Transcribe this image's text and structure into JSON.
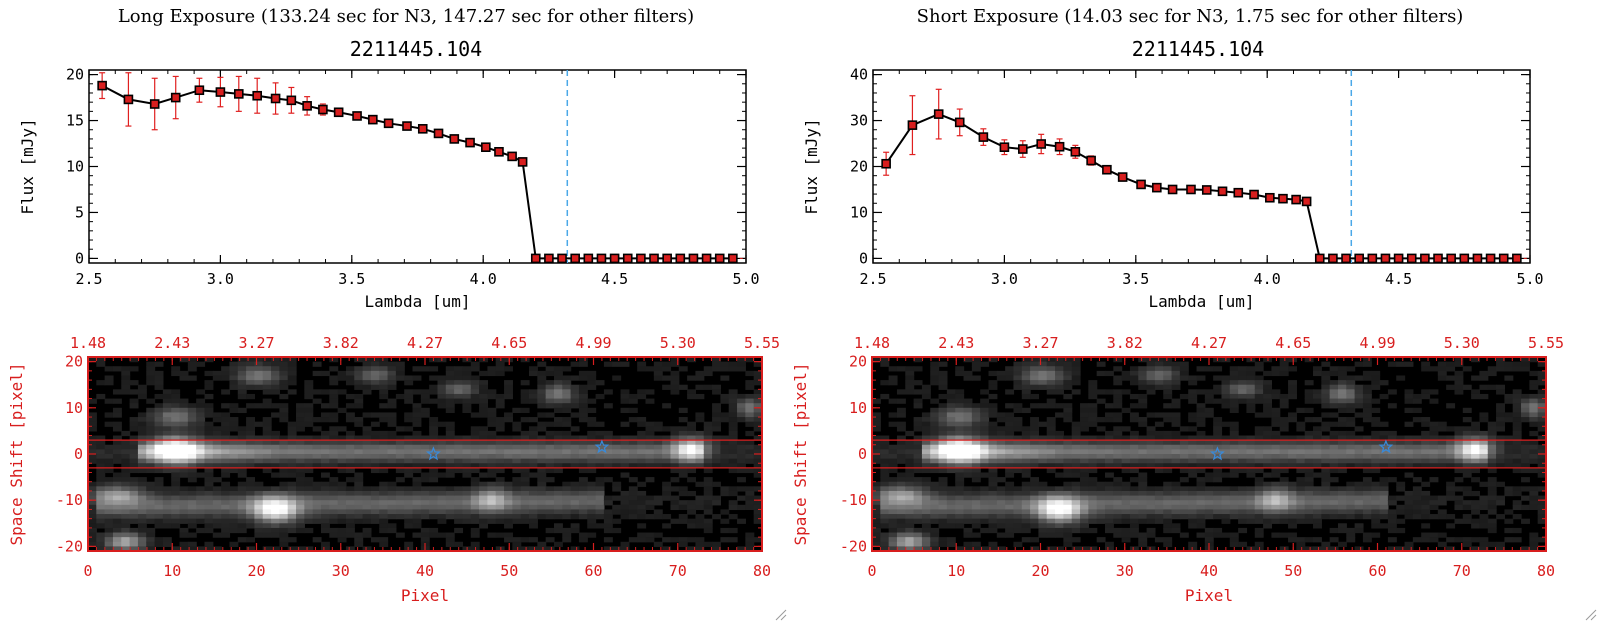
{
  "panels": [
    {
      "header": "Long Exposure (133.24 sec for N3, 147.27 sec for other filters)",
      "subtitle": "2211445.104"
    },
    {
      "header": "Short Exposure (14.03 sec for N3, 1.75 sec for other filters)",
      "subtitle": "2211445.104"
    }
  ],
  "colors": {
    "axis": "#000000",
    "point_fill": "#d81e1e",
    "error_bar": "#e02020",
    "vline": "#4aa8e8",
    "spec_frame": "#d81e1e",
    "star": "#3a8ad8"
  },
  "chart_data": [
    {
      "type": "line",
      "title": "2211445.104",
      "xlabel": "Lambda [um]",
      "ylabel": "Flux [mJy]",
      "xlim": [
        2.5,
        5.0
      ],
      "ylim": [
        -0.5,
        20.5
      ],
      "xticks": [
        2.5,
        3.0,
        3.5,
        4.0,
        4.5,
        5.0
      ],
      "xtick_labels": [
        "2.5",
        "3.0",
        "3.5",
        "4.0",
        "4.5",
        "5.0"
      ],
      "yticks": [
        0,
        5,
        10,
        15,
        20
      ],
      "ytick_labels": [
        "0",
        "5",
        "10",
        "15",
        "20"
      ],
      "vline_x": 4.32,
      "series": [
        {
          "name": "flux",
          "x": [
            2.55,
            2.65,
            2.75,
            2.83,
            2.92,
            3.0,
            3.07,
            3.14,
            3.21,
            3.27,
            3.33,
            3.39,
            3.45,
            3.52,
            3.58,
            3.64,
            3.71,
            3.77,
            3.83,
            3.89,
            3.95,
            4.01,
            4.06,
            4.11,
            4.15,
            4.2,
            4.25,
            4.3,
            4.35,
            4.4,
            4.45,
            4.5,
            4.55,
            4.6,
            4.65,
            4.7,
            4.75,
            4.8,
            4.85,
            4.9,
            4.95
          ],
          "y": [
            18.8,
            17.3,
            16.8,
            17.5,
            18.3,
            18.1,
            17.9,
            17.7,
            17.4,
            17.2,
            16.6,
            16.2,
            15.9,
            15.5,
            15.1,
            14.7,
            14.4,
            14.1,
            13.6,
            13.0,
            12.6,
            12.1,
            11.6,
            11.1,
            10.5,
            0,
            0,
            0,
            0,
            0,
            0,
            0,
            0,
            0,
            0,
            0,
            0,
            0,
            0,
            0,
            0
          ],
          "yerr": [
            1.4,
            2.9,
            2.8,
            2.3,
            1.3,
            1.6,
            1.9,
            1.9,
            1.7,
            1.4,
            1.0,
            0.6,
            0.4,
            0.3,
            0.3,
            0.3,
            0.3,
            0.3,
            0.3,
            0.3,
            0.3,
            0.3,
            0.3,
            0.3,
            0.3,
            0,
            0,
            0,
            0,
            0,
            0,
            0,
            0,
            0,
            0,
            0,
            0,
            0,
            0,
            0,
            0
          ]
        }
      ]
    },
    {
      "type": "line",
      "title": "2211445.104",
      "xlabel": "Lambda [um]",
      "ylabel": "Flux [mJy]",
      "xlim": [
        2.5,
        5.0
      ],
      "ylim": [
        -1,
        41
      ],
      "xticks": [
        2.5,
        3.0,
        3.5,
        4.0,
        4.5,
        5.0
      ],
      "xtick_labels": [
        "2.5",
        "3.0",
        "3.5",
        "4.0",
        "4.5",
        "5.0"
      ],
      "yticks": [
        0,
        10,
        20,
        30,
        40
      ],
      "ytick_labels": [
        "0",
        "10",
        "20",
        "30",
        "40"
      ],
      "vline_x": 4.32,
      "series": [
        {
          "name": "flux",
          "x": [
            2.55,
            2.65,
            2.75,
            2.83,
            2.92,
            3.0,
            3.07,
            3.14,
            3.21,
            3.27,
            3.33,
            3.39,
            3.45,
            3.52,
            3.58,
            3.64,
            3.71,
            3.77,
            3.83,
            3.89,
            3.95,
            4.01,
            4.06,
            4.11,
            4.15,
            4.2,
            4.25,
            4.3,
            4.35,
            4.4,
            4.45,
            4.5,
            4.55,
            4.6,
            4.65,
            4.7,
            4.75,
            4.8,
            4.85,
            4.9,
            4.95
          ],
          "y": [
            20.6,
            29.0,
            31.4,
            29.6,
            26.4,
            24.2,
            23.8,
            24.9,
            24.3,
            23.2,
            21.3,
            19.3,
            17.7,
            16.1,
            15.4,
            15.0,
            15.0,
            14.9,
            14.6,
            14.3,
            13.9,
            13.2,
            13.0,
            12.8,
            12.4,
            0,
            0,
            0,
            0,
            0,
            0,
            0,
            0,
            0,
            0,
            0,
            0,
            0,
            0,
            0,
            0
          ],
          "yerr": [
            2.5,
            6.4,
            5.4,
            2.9,
            1.8,
            1.6,
            1.8,
            2.1,
            1.7,
            1.4,
            1.0,
            0.7,
            0.5,
            0.4,
            0.4,
            0.4,
            0.4,
            0.4,
            0.4,
            0.4,
            0.4,
            0.4,
            0.4,
            0.4,
            0.4,
            0,
            0,
            0,
            0,
            0,
            0,
            0,
            0,
            0,
            0,
            0,
            0,
            0,
            0,
            0,
            0
          ]
        }
      ]
    },
    {
      "type": "heatmap",
      "xlabel": "Pixel",
      "ylabel": "Space Shift [pixel]",
      "xlim": [
        0,
        80
      ],
      "ylim": [
        -21,
        21
      ],
      "xticks": [
        0,
        10,
        20,
        30,
        40,
        50,
        60,
        70,
        80
      ],
      "xtick_labels": [
        "0",
        "10",
        "20",
        "30",
        "40",
        "50",
        "60",
        "70",
        "80"
      ],
      "yticks": [
        -20,
        -10,
        0,
        10,
        20
      ],
      "ytick_labels": [
        "-20",
        "-10",
        "0",
        "10",
        "20"
      ],
      "top_ticks": [
        0,
        10,
        20,
        30,
        40,
        50,
        60,
        70,
        80
      ],
      "top_tick_labels": [
        "1.48",
        "2.43",
        "3.27",
        "3.82",
        "4.27",
        "4.65",
        "4.99",
        "5.30",
        "5.55"
      ],
      "aperture_rows": [
        3,
        -3
      ],
      "star_positions": [
        [
          41,
          0
        ],
        [
          61,
          1.5
        ]
      ],
      "bright_sources": [
        {
          "x": 10,
          "y": 0.8,
          "amp": 1.0,
          "sx": 2.6,
          "sy": 2.6
        },
        {
          "x": 22,
          "y": -12,
          "amp": 0.85,
          "sx": 2.6,
          "sy": 2.6
        },
        {
          "x": 72,
          "y": 1.0,
          "amp": 0.7,
          "sx": 2.0,
          "sy": 2.4
        },
        {
          "x": 4,
          "y": -19,
          "amp": 0.55,
          "sx": 2.2,
          "sy": 1.8
        },
        {
          "x": 20,
          "y": 17,
          "amp": 0.35,
          "sx": 2.5,
          "sy": 2.0
        },
        {
          "x": 10,
          "y": 8,
          "amp": 0.35,
          "sx": 2.5,
          "sy": 2.0
        },
        {
          "x": 56,
          "y": 13,
          "amp": 0.35,
          "sx": 1.8,
          "sy": 2.0
        },
        {
          "x": 48,
          "y": -10,
          "amp": 0.4,
          "sx": 2.0,
          "sy": 2.5
        },
        {
          "x": 34,
          "y": 17,
          "amp": 0.3,
          "sx": 2.0,
          "sy": 1.7
        },
        {
          "x": 44,
          "y": 14,
          "amp": 0.28,
          "sx": 2.0,
          "sy": 1.7
        },
        {
          "x": 79,
          "y": 10,
          "amp": 0.35,
          "sx": 1.5,
          "sy": 2.0
        },
        {
          "x": 3,
          "y": -9,
          "amp": 0.45,
          "sx": 3.0,
          "sy": 2.0
        }
      ]
    },
    {
      "type": "heatmap",
      "xlabel": "Pixel",
      "ylabel": "Space Shift [pixel]",
      "xlim": [
        0,
        80
      ],
      "ylim": [
        -21,
        21
      ],
      "xticks": [
        0,
        10,
        20,
        30,
        40,
        50,
        60,
        70,
        80
      ],
      "xtick_labels": [
        "0",
        "10",
        "20",
        "30",
        "40",
        "50",
        "60",
        "70",
        "80"
      ],
      "yticks": [
        -20,
        -10,
        0,
        10,
        20
      ],
      "ytick_labels": [
        "-20",
        "-10",
        "0",
        "10",
        "20"
      ],
      "top_ticks": [
        0,
        10,
        20,
        30,
        40,
        50,
        60,
        70,
        80
      ],
      "top_tick_labels": [
        "1.48",
        "2.43",
        "3.27",
        "3.82",
        "4.27",
        "4.65",
        "4.99",
        "5.30",
        "5.55"
      ],
      "aperture_rows": [
        3,
        -3
      ],
      "star_positions": [
        [
          41,
          0
        ],
        [
          61,
          1.5
        ]
      ],
      "bright_sources": [
        {
          "x": 10,
          "y": 0.8,
          "amp": 1.0,
          "sx": 2.6,
          "sy": 2.6
        },
        {
          "x": 22,
          "y": -12,
          "amp": 0.85,
          "sx": 2.6,
          "sy": 2.6
        },
        {
          "x": 72,
          "y": 1.0,
          "amp": 0.7,
          "sx": 2.0,
          "sy": 2.4
        },
        {
          "x": 4,
          "y": -19,
          "amp": 0.55,
          "sx": 2.2,
          "sy": 1.8
        },
        {
          "x": 20,
          "y": 17,
          "amp": 0.35,
          "sx": 2.5,
          "sy": 2.0
        },
        {
          "x": 10,
          "y": 8,
          "amp": 0.35,
          "sx": 2.5,
          "sy": 2.0
        },
        {
          "x": 56,
          "y": 13,
          "amp": 0.35,
          "sx": 1.8,
          "sy": 2.0
        },
        {
          "x": 48,
          "y": -10,
          "amp": 0.4,
          "sx": 2.0,
          "sy": 2.5
        },
        {
          "x": 34,
          "y": 17,
          "amp": 0.3,
          "sx": 2.0,
          "sy": 1.7
        },
        {
          "x": 44,
          "y": 14,
          "amp": 0.28,
          "sx": 2.0,
          "sy": 1.7
        },
        {
          "x": 79,
          "y": 10,
          "amp": 0.35,
          "sx": 1.5,
          "sy": 2.0
        },
        {
          "x": 3,
          "y": -9,
          "amp": 0.45,
          "sx": 3.0,
          "sy": 2.0
        }
      ]
    }
  ]
}
